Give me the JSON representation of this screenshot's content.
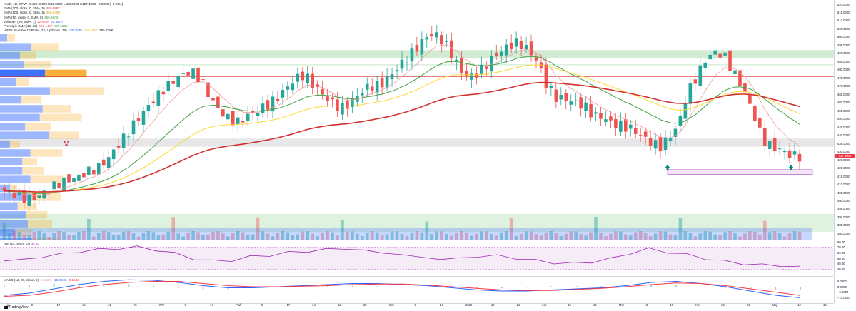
{
  "legend": {
    "symbol": {
      "label": "Knab, 1D, GPW",
      "values": "O429.0000  H432.0000  L424.6000  C427.4000  −0.9000 (−0.21%)"
    },
    "ema200": {
      "label": "EMA (200, close, 0, SMA, 5)",
      "value": "450.6897",
      "color": "#d32f2f"
    },
    "ema100": {
      "label": "EMA (100, close, 0, SMA, 5)",
      "value": "456.0000",
      "color": "#fdd835"
    },
    "ema50": {
      "label": "EMA (50, close, 0, SMA, 5)",
      "value": "456.4803",
      "color": "#43a047"
    },
    "volume": {
      "label": "Volumen (20, SMA, 1)",
      "value1": "12.583K",
      "value2": "41.367K"
    },
    "pema": {
      "label": "Prenciple EMA (10, 30)",
      "value1": "458.1457",
      "value2": "459.5688"
    },
    "vrvp": {
      "label": "VRVP (Number Of Rows, 24, Up/Down, 70)",
      "value1": "130.353K",
      "value2": "125.425K",
      "value3": "255.778K"
    }
  },
  "rsi_legend": {
    "label": "RSI (14, SMA, 14)",
    "value": "34.53"
  },
  "macd_legend": {
    "label": "MACD (12, 26, close, 9)",
    "value1": "−1.1458",
    "value2": "−10.3048",
    "value3": "−8.1642"
  },
  "last_price": "427.4000",
  "footer": {
    "brand": "TradingView"
  },
  "colors": {
    "up": "#26a69a",
    "down": "#ef5350",
    "ema200": "#d32f2f",
    "ema100": "#fdd835",
    "ema50": "#43a047",
    "ema20": "#ef9a9a",
    "rsi": "#9c27b0",
    "macd": "#2962ff",
    "signal": "#f23645"
  },
  "chart_data": [
    {
      "type": "candlestick",
      "title": "Knab, 1D, GPW",
      "x": [
        "Lip",
        "9",
        "17",
        "Sie",
        "11",
        "20",
        "Wrz",
        "8",
        "17",
        "Paź",
        "9",
        "17",
        "Lis",
        "12",
        "20",
        "Gru",
        "9",
        "17",
        "2026",
        "12",
        "21",
        "Lut",
        "10",
        "19",
        "Mar",
        "10",
        "16",
        "Kwi",
        "13",
        "21",
        "Maj",
        "12",
        "19"
      ],
      "ylim": [
        378,
        520
      ],
      "y_ticks": [
        "520.0000",
        "515.0000",
        "510.0000",
        "505.0000",
        "500.0000",
        "495.0000",
        "490.0000",
        "485.0000",
        "480.0000",
        "475.0000",
        "470.0000",
        "465.0000",
        "460.0000",
        "455.0000",
        "450.0000",
        "445.0000",
        "440.0000",
        "435.0000",
        "430.0000",
        "425.0000",
        "420.0000",
        "415.0000",
        "410.0000",
        "405.0000",
        "400.0000",
        "395.0000",
        "390.0000",
        "385.0000",
        "380.0000"
      ],
      "close_path": [
        406,
        404,
        402,
        401,
        404,
        408,
        411,
        413,
        415,
        418,
        420,
        425,
        433,
        440,
        448,
        455,
        462,
        468,
        473,
        477,
        479,
        474,
        463,
        455,
        450,
        448,
        452,
        455,
        458,
        462,
        468,
        474,
        477,
        471,
        465,
        460,
        456,
        460,
        466,
        470,
        470,
        475,
        481,
        487,
        493,
        500,
        502,
        497,
        488,
        477,
        476,
        480,
        486,
        491,
        495,
        497,
        492,
        485,
        470,
        463,
        462,
        460,
        458,
        452,
        451,
        447,
        446,
        444,
        440,
        436,
        433,
        438,
        446,
        466,
        476,
        487,
        491,
        488,
        478,
        468,
        454,
        438,
        433,
        431,
        428,
        427
      ],
      "horizontal_levels": [
        483,
        476
      ],
      "zones": [
        {
          "from": 487,
          "to": 492
        },
        {
          "from": 433,
          "to": 438
        },
        {
          "from": 416,
          "to": 419
        },
        {
          "from": 381,
          "to": 392
        }
      ]
    },
    {
      "type": "line",
      "title": "RSI (14, SMA, 14)",
      "ylim": [
        20,
        80
      ],
      "y_ticks": [
        "80.00",
        "70.00",
        "60.00",
        "50.00",
        "40.00",
        "30.00"
      ],
      "series": [
        {
          "name": "RSI",
          "values": [
            45,
            48,
            52,
            58,
            62,
            66,
            68,
            70,
            66,
            58,
            50,
            44,
            47,
            52,
            56,
            60,
            63,
            66,
            68,
            64,
            60,
            56,
            52,
            48,
            50,
            53,
            55,
            50,
            46,
            42,
            40,
            44,
            48,
            60,
            66,
            62,
            56,
            50,
            44,
            40,
            38,
            36,
            34.53
          ]
        }
      ]
    },
    {
      "type": "line",
      "title": "MACD (12, 26, close, 9)",
      "ylim": [
        -14,
        8
      ],
      "y_ticks": [
        "5.0000",
        "0.0000",
        "−5.0000",
        "−10.0000"
      ],
      "series": [
        {
          "name": "MACD",
          "values": [
            -8,
            -6,
            -2,
            2,
            5,
            6.5,
            6,
            4,
            1,
            -1,
            -1,
            0,
            1,
            2,
            3,
            3,
            2,
            1,
            -1,
            -3,
            -4,
            -4,
            -3,
            -2,
            -1,
            1,
            4,
            5,
            3,
            0,
            -4,
            -8,
            -10.3
          ]
        },
        {
          "name": "Signal",
          "values": [
            -9,
            -8,
            -5,
            -1,
            2,
            4,
            5,
            5,
            3,
            1,
            0,
            0,
            0.5,
            1,
            2,
            2.5,
            2.5,
            1.5,
            0,
            -1.5,
            -3,
            -3.5,
            -3.5,
            -2.5,
            -1.5,
            0,
            2,
            3.5,
            3,
            1,
            -2,
            -5,
            -8.16
          ]
        }
      ]
    }
  ]
}
